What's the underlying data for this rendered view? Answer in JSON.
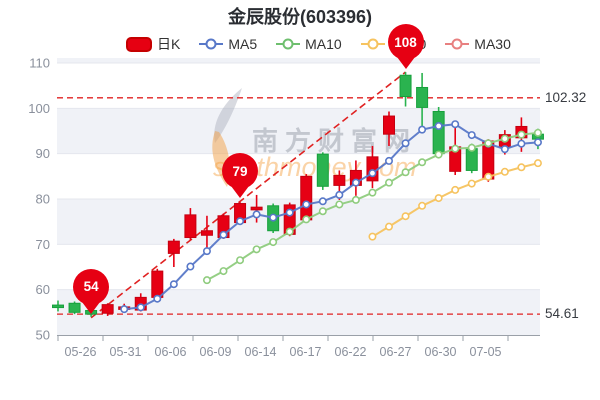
{
  "title": "金辰股份(603396)",
  "legend": {
    "items": [
      {
        "label": "日K",
        "color": "#e60012"
      },
      {
        "label": "MA5",
        "color": "#5878c8"
      },
      {
        "label": "MA10",
        "color": "#6ebf6e"
      },
      {
        "label": "MA20",
        "color": "#f6c35f"
      },
      {
        "label": "MA30",
        "color": "#e88080"
      }
    ]
  },
  "watermark": {
    "cn": "南方财富网",
    "en": "southmoney.com"
  },
  "chart_data": {
    "type": "candlestick",
    "title": "金辰股份(603396)",
    "x_labels": [
      "05-26",
      "05-31",
      "06-06",
      "06-09",
      "06-14",
      "06-17",
      "06-22",
      "06-27",
      "06-30",
      "07-05"
    ],
    "y_axis": {
      "min": 50,
      "max": 110,
      "tick_step": 10,
      "ticks": [
        110,
        100,
        90,
        80,
        70,
        60,
        50
      ]
    },
    "dates": [
      "05-26",
      "05-27",
      "05-30",
      "05-31",
      "06-01",
      "06-02",
      "06-06",
      "06-07",
      "06-08",
      "06-09",
      "06-10",
      "06-13",
      "06-14",
      "06-15",
      "06-16",
      "06-17",
      "06-20",
      "06-21",
      "06-22",
      "06-23",
      "06-24",
      "06-27",
      "06-28",
      "06-29",
      "06-30",
      "07-01",
      "07-04",
      "07-05",
      "07-06",
      "07-07"
    ],
    "candles": [
      {
        "date": "05-26",
        "o": 56.6,
        "h": 57.6,
        "l": 55.2,
        "c": 56.2
      },
      {
        "date": "05-27",
        "o": 57.0,
        "h": 57.4,
        "l": 54.6,
        "c": 55.0
      },
      {
        "date": "05-30",
        "o": 55.4,
        "h": 55.8,
        "l": 54.0,
        "c": 54.6
      },
      {
        "date": "05-31",
        "o": 54.8,
        "h": 57.0,
        "l": 54.2,
        "c": 56.7
      },
      {
        "date": "06-01",
        "o": 55.9,
        "h": 56.9,
        "l": 55.1,
        "c": 56.2
      },
      {
        "date": "06-02",
        "o": 55.5,
        "h": 59.2,
        "l": 55.2,
        "c": 58.3
      },
      {
        "date": "06-06",
        "o": 58.3,
        "h": 64.6,
        "l": 58.0,
        "c": 64.1
      },
      {
        "date": "06-07",
        "o": 68.0,
        "h": 71.2,
        "l": 65.0,
        "c": 70.7
      },
      {
        "date": "06-08",
        "o": 71.5,
        "h": 78.0,
        "l": 71.0,
        "c": 76.5
      },
      {
        "date": "06-09",
        "o": 72.0,
        "h": 76.3,
        "l": 69.1,
        "c": 73.0
      },
      {
        "date": "06-10",
        "o": 71.5,
        "h": 76.8,
        "l": 71.2,
        "c": 76.3
      },
      {
        "date": "06-13",
        "o": 74.8,
        "h": 79.3,
        "l": 74.5,
        "c": 79.0
      },
      {
        "date": "06-14",
        "o": 77.6,
        "h": 80.9,
        "l": 74.8,
        "c": 78.2
      },
      {
        "date": "06-15",
        "o": 78.5,
        "h": 79.0,
        "l": 72.5,
        "c": 73.0
      },
      {
        "date": "06-16",
        "o": 72.2,
        "h": 79.2,
        "l": 71.8,
        "c": 78.7
      },
      {
        "date": "06-17",
        "o": 75.4,
        "h": 85.5,
        "l": 75.0,
        "c": 85.0
      },
      {
        "date": "06-20",
        "o": 89.9,
        "h": 90.3,
        "l": 82.0,
        "c": 82.8
      },
      {
        "date": "06-21",
        "o": 83.0,
        "h": 86.3,
        "l": 79.8,
        "c": 85.2
      },
      {
        "date": "06-22",
        "o": 83.0,
        "h": 88.5,
        "l": 80.7,
        "c": 86.3
      },
      {
        "date": "06-23",
        "o": 84.0,
        "h": 91.7,
        "l": 82.4,
        "c": 89.3
      },
      {
        "date": "06-24",
        "o": 94.3,
        "h": 99.3,
        "l": 91.7,
        "c": 98.3
      },
      {
        "date": "06-27",
        "o": 107.3,
        "h": 108.0,
        "l": 100.4,
        "c": 102.6
      },
      {
        "date": "06-28",
        "o": 104.6,
        "h": 107.8,
        "l": 95.2,
        "c": 100.2
      },
      {
        "date": "06-29",
        "o": 99.3,
        "h": 100.3,
        "l": 89.2,
        "c": 90.0
      },
      {
        "date": "06-30",
        "o": 86.1,
        "h": 96.0,
        "l": 85.3,
        "c": 91.5
      },
      {
        "date": "07-01",
        "o": 91.1,
        "h": 92.2,
        "l": 85.7,
        "c": 86.3
      },
      {
        "date": "07-04",
        "o": 84.4,
        "h": 93.2,
        "l": 83.8,
        "c": 92.8
      },
      {
        "date": "07-05",
        "o": 91.5,
        "h": 95.2,
        "l": 89.8,
        "c": 94.2
      },
      {
        "date": "07-06",
        "o": 93.5,
        "h": 98.0,
        "l": 90.4,
        "c": 96.0
      },
      {
        "date": "07-07",
        "o": 94.3,
        "h": 95.5,
        "l": 91.0,
        "c": 93.2
      }
    ],
    "series": [
      {
        "name": "MA5",
        "start_index": 4,
        "color": "#5878c8",
        "values": [
          55.7,
          56.1,
          58.0,
          61.2,
          65.1,
          68.5,
          72.1,
          75.1,
          76.6,
          75.9,
          77.0,
          78.8,
          79.5,
          80.9,
          83.6,
          85.7,
          88.4,
          92.3,
          95.3,
          96.1,
          96.5,
          94.1,
          92.2,
          91.0,
          92.2,
          92.5
        ]
      },
      {
        "name": "MA10",
        "start_index": 9,
        "color": "#8fcc7e",
        "values": [
          62.1,
          64.1,
          66.5,
          68.9,
          70.5,
          72.8,
          75.5,
          77.3,
          78.8,
          79.8,
          81.4,
          83.6,
          85.9,
          88.1,
          89.8,
          91.1,
          91.3,
          92.3,
          93.3,
          94.2,
          94.6
        ]
      },
      {
        "name": "MA20",
        "start_index": 19,
        "color": "#f6c35f",
        "values": [
          71.7,
          73.9,
          76.2,
          78.5,
          80.2,
          82.0,
          83.4,
          84.9,
          86.0,
          87.0,
          87.9
        ]
      },
      {
        "name": "MA30",
        "start_index": 29,
        "color": "#e88080",
        "values": []
      }
    ],
    "annotations": {
      "badges": [
        {
          "index": 2,
          "label": "54",
          "anchor_value": 54.0
        },
        {
          "index": 11,
          "label": "79",
          "anchor_value": 79.5
        },
        {
          "index": 21,
          "label": "108",
          "anchor_value": 108.0
        }
      ],
      "hlines": [
        {
          "value": 102.32,
          "label": "102.32"
        },
        {
          "value": 54.61,
          "label": "54.61"
        }
      ],
      "trendline": {
        "from_index": 2,
        "from_value": 53.8,
        "to_index": 21,
        "to_value": 108.0
      }
    },
    "style": {
      "up_color": "#e60014",
      "up_stroke": "#c50010",
      "down_color": "#2ab34f",
      "down_stroke": "#17a03c",
      "band_color": "#f0f2f7",
      "grid_color": "#e4e7ee",
      "axis_color": "#9aa0a8",
      "label_color": "#8a909c",
      "annotation_color": "#e02222",
      "badge_color": "#e60013"
    }
  }
}
